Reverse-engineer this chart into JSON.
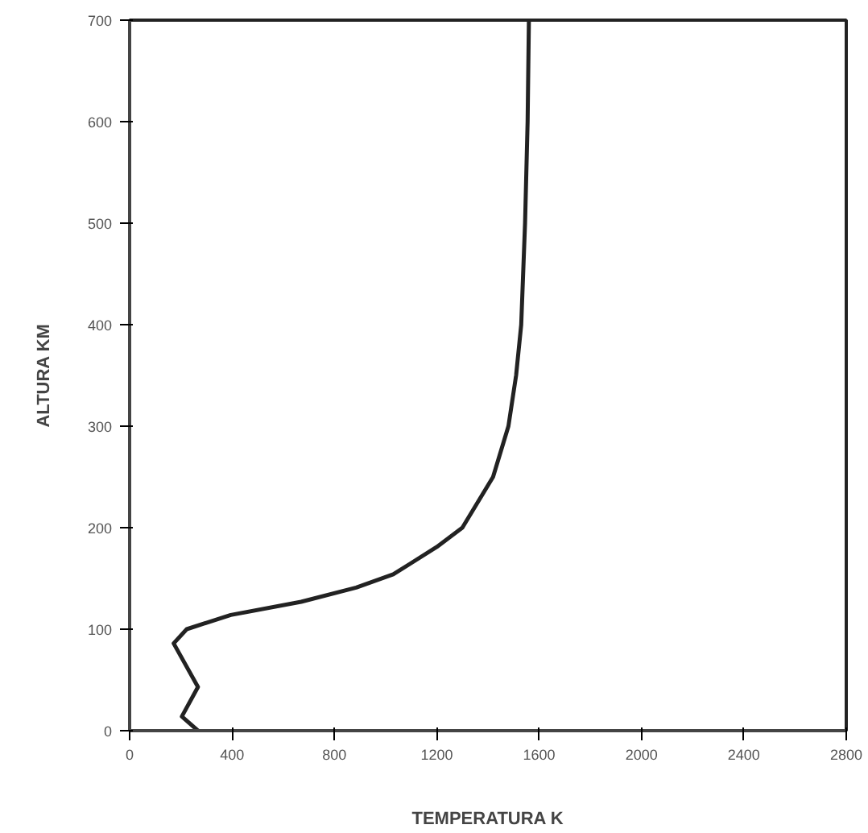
{
  "chart_data": {
    "type": "line",
    "xlabel": "TEMPERATURA K",
    "ylabel": "ALTURA KM",
    "x": [
      267,
      204,
      267,
      172,
      223,
      395,
      670,
      885,
      1030,
      1200,
      1300,
      1420,
      1480,
      1510,
      1530,
      1545,
      1555,
      1560
    ],
    "series": [
      {
        "color": "#222222",
        "values": [
          0,
          14,
          43,
          86,
          100,
          114,
          127,
          141,
          154,
          181,
          200,
          250,
          300,
          350,
          400,
          500,
          600,
          700
        ]
      }
    ],
    "xlim": [
      0,
      2800
    ],
    "ylim": [
      0,
      700
    ],
    "xticks": [
      0,
      400,
      800,
      1200,
      1600,
      2000,
      2400,
      2800
    ],
    "yticks": [
      0,
      100,
      200,
      300,
      400,
      500,
      600,
      700
    ],
    "grid": false,
    "marker": "none",
    "line_style": "solid"
  }
}
